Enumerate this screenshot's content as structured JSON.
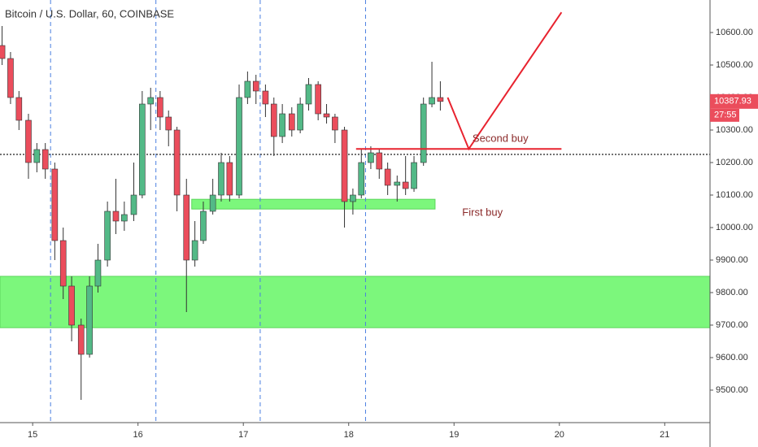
{
  "chart_data": {
    "type": "candlestick",
    "title": "Bitcoin / U.S. Dollar, 60, COINBASE",
    "up_color": "#53b987",
    "down_color": "#eb4d5c",
    "x": [
      14.71,
      14.79,
      14.87,
      14.96,
      15.04,
      15.12,
      15.21,
      15.29,
      15.37,
      15.46,
      15.54,
      15.62,
      15.71,
      15.79,
      15.87,
      15.96,
      16.04,
      16.12,
      16.21,
      16.29,
      16.37,
      16.46,
      16.54,
      16.62,
      16.71,
      16.79,
      16.87,
      16.96,
      17.04,
      17.12,
      17.21,
      17.29,
      17.37,
      17.46,
      17.54,
      17.62,
      17.71,
      17.79,
      17.87,
      17.96,
      18.04,
      18.12,
      18.21,
      18.29,
      18.37,
      18.46,
      18.54,
      18.62,
      18.71,
      18.79,
      18.87
    ],
    "open": [
      10560,
      10520,
      10400,
      10330,
      10200,
      10240,
      10180,
      9960,
      9820,
      9700,
      9610,
      9820,
      9900,
      10050,
      10020,
      10040,
      10100,
      10380,
      10400,
      10340,
      10300,
      10100,
      9900,
      9960,
      10050,
      10100,
      10200,
      10100,
      10400,
      10450,
      10420,
      10380,
      10280,
      10350,
      10300,
      10380,
      10440,
      10350,
      10340,
      10300,
      10080,
      10100,
      10200,
      10230,
      10180,
      10130,
      10140,
      10120,
      10200,
      10380,
      10400
    ],
    "high": [
      10620,
      10540,
      10420,
      10350,
      10260,
      10260,
      10200,
      10000,
      9850,
      9720,
      9850,
      9950,
      10080,
      10150,
      10080,
      10200,
      10420,
      10430,
      10420,
      10360,
      10310,
      10150,
      10020,
      10080,
      10150,
      10230,
      10220,
      10440,
      10480,
      10470,
      10440,
      10400,
      10380,
      10370,
      10400,
      10460,
      10450,
      10380,
      10350,
      10310,
      10120,
      10240,
      10250,
      10240,
      10200,
      10160,
      10220,
      10220,
      10400,
      10510,
      10450
    ],
    "low": [
      10500,
      10380,
      10300,
      10150,
      10170,
      10150,
      9900,
      9780,
      9650,
      9470,
      9600,
      9800,
      9880,
      9980,
      9990,
      10020,
      10090,
      10300,
      10300,
      10250,
      10050,
      9740,
      9880,
      9950,
      10040,
      10080,
      10080,
      10090,
      10380,
      10380,
      10340,
      10220,
      10260,
      10280,
      10290,
      10360,
      10330,
      10320,
      10260,
      10000,
      10040,
      10090,
      10180,
      10150,
      10100,
      10080,
      10100,
      10110,
      10190,
      10370,
      10360
    ],
    "close": [
      10520,
      10400,
      10330,
      10200,
      10240,
      10180,
      9960,
      9820,
      9700,
      9610,
      9820,
      9900,
      10050,
      10020,
      10040,
      10100,
      10380,
      10400,
      10340,
      10300,
      10100,
      9900,
      9960,
      10050,
      10100,
      10200,
      10100,
      10400,
      10450,
      10420,
      10380,
      10280,
      10350,
      10300,
      10380,
      10440,
      10350,
      10340,
      10300,
      10080,
      10100,
      10200,
      10230,
      10180,
      10130,
      10140,
      10120,
      10200,
      10380,
      10400,
      10387.93
    ],
    "xlim": [
      14.69,
      21.43
    ],
    "xticks": [
      15,
      16,
      17,
      18,
      19,
      20,
      21
    ],
    "ylim": [
      9400,
      10700
    ],
    "yticks": [
      {
        "value": 9500,
        "label": "9500.00"
      },
      {
        "value": 9600,
        "label": "9600.00"
      },
      {
        "value": 9700,
        "label": "9700.00"
      },
      {
        "value": 9800,
        "label": "9800.00"
      },
      {
        "value": 9900,
        "label": "9900.00"
      },
      {
        "value": 10000,
        "label": "10000.00"
      },
      {
        "value": 10100,
        "label": "10100.00"
      },
      {
        "value": 10200,
        "label": "10200.00"
      },
      {
        "value": 10300,
        "label": "10300.00"
      },
      {
        "value": 10400,
        "label": "10400.00"
      },
      {
        "value": 10500,
        "label": "10500.00"
      },
      {
        "value": 10600,
        "label": "10600.00"
      }
    ],
    "last_price": {
      "value": 10387.93,
      "label": "10387.93"
    },
    "countdown": "27:55",
    "session_lines": [
      15.17,
      16.17,
      17.16,
      18.16
    ],
    "dotted_line": 10225,
    "zones": [
      {
        "x": [
          14.69,
          21.43
        ],
        "y": [
          9692,
          9850
        ]
      },
      {
        "x": [
          16.51,
          18.82
        ],
        "y": [
          10057,
          10087
        ]
      }
    ],
    "second_buy_line": {
      "x": [
        18.07,
        20.02
      ],
      "y": 10242
    },
    "path": {
      "x": [
        18.94,
        19.14,
        20.02
      ],
      "y": [
        10400,
        10242,
        10662
      ]
    },
    "annotations": [
      {
        "text": "Second buy",
        "x": 19.44,
        "y": 10272
      },
      {
        "text": "First buy",
        "x": 19.27,
        "y": 10045
      }
    ]
  }
}
